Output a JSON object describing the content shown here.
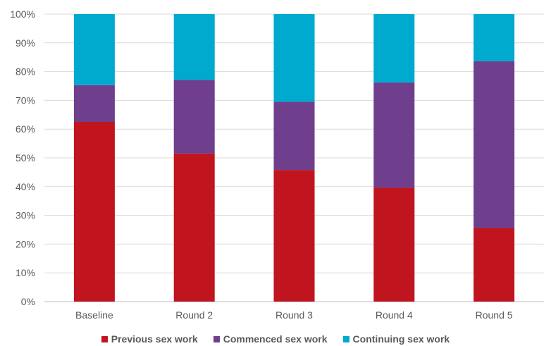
{
  "chart_data": {
    "type": "bar",
    "stacked": true,
    "categories": [
      "Baseline",
      "Round 2",
      "Round 3",
      "Round 4",
      "Round 5"
    ],
    "series": [
      {
        "name": "Previous sex work",
        "color": "#C0141E",
        "values": [
          62.5,
          51.5,
          45.8,
          39.6,
          25.6
        ]
      },
      {
        "name": "Commenced sex work",
        "color": "#6F3F8E",
        "values": [
          12.8,
          25.6,
          23.7,
          36.6,
          58.0
        ]
      },
      {
        "name": "Continuing sex work",
        "color": "#00A9CE",
        "values": [
          24.7,
          22.9,
          30.5,
          23.8,
          16.4
        ]
      }
    ],
    "ylim": [
      0,
      100
    ],
    "yticks": [
      "0%",
      "10%",
      "20%",
      "30%",
      "40%",
      "50%",
      "60%",
      "70%",
      "80%",
      "90%",
      "100%"
    ],
    "grid": true,
    "legend_position": "bottom",
    "title": "",
    "xlabel": "",
    "ylabel": ""
  }
}
